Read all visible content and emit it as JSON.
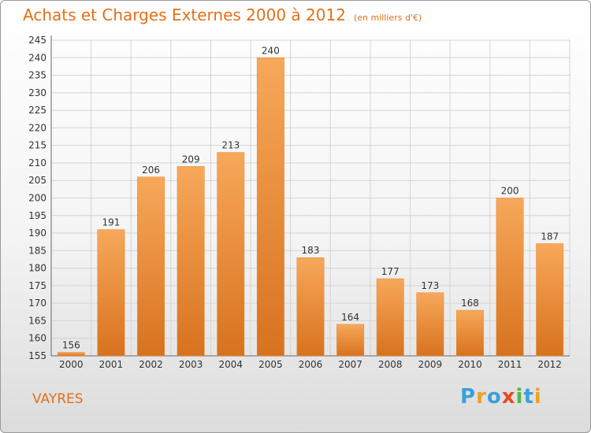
{
  "header": {
    "title": "Achats et Charges Externes 2000 à 2012",
    "subtitle": "(en milliers d'€)"
  },
  "footer": {
    "commune": "VAYRES",
    "logo_letters": [
      "P",
      "r",
      "o",
      "x",
      "i",
      "t",
      "i"
    ],
    "logo_colors": [
      "#3aa0d8",
      "#f0a020",
      "#3aa0d8",
      "#e84a20",
      "#50b848",
      "#3aa0d8",
      "#f0a020"
    ]
  },
  "colors": {
    "bar_light": "#f7a85a",
    "bar_dark": "#d8721e",
    "bar_border": "#e88a30",
    "grid": "#d4d4d4",
    "title": "#e2701a"
  },
  "chart_data": {
    "type": "bar",
    "categories": [
      "2000",
      "2001",
      "2002",
      "2003",
      "2004",
      "2005",
      "2006",
      "2007",
      "2008",
      "2009",
      "2010",
      "2011",
      "2012"
    ],
    "values": [
      156,
      191,
      206,
      209,
      213,
      240,
      183,
      164,
      177,
      173,
      168,
      200,
      187
    ],
    "ylim": [
      155,
      245
    ],
    "yticks": [
      155,
      160,
      165,
      170,
      175,
      180,
      185,
      190,
      195,
      200,
      205,
      210,
      215,
      220,
      225,
      230,
      235,
      240,
      245
    ],
    "grid": true
  }
}
